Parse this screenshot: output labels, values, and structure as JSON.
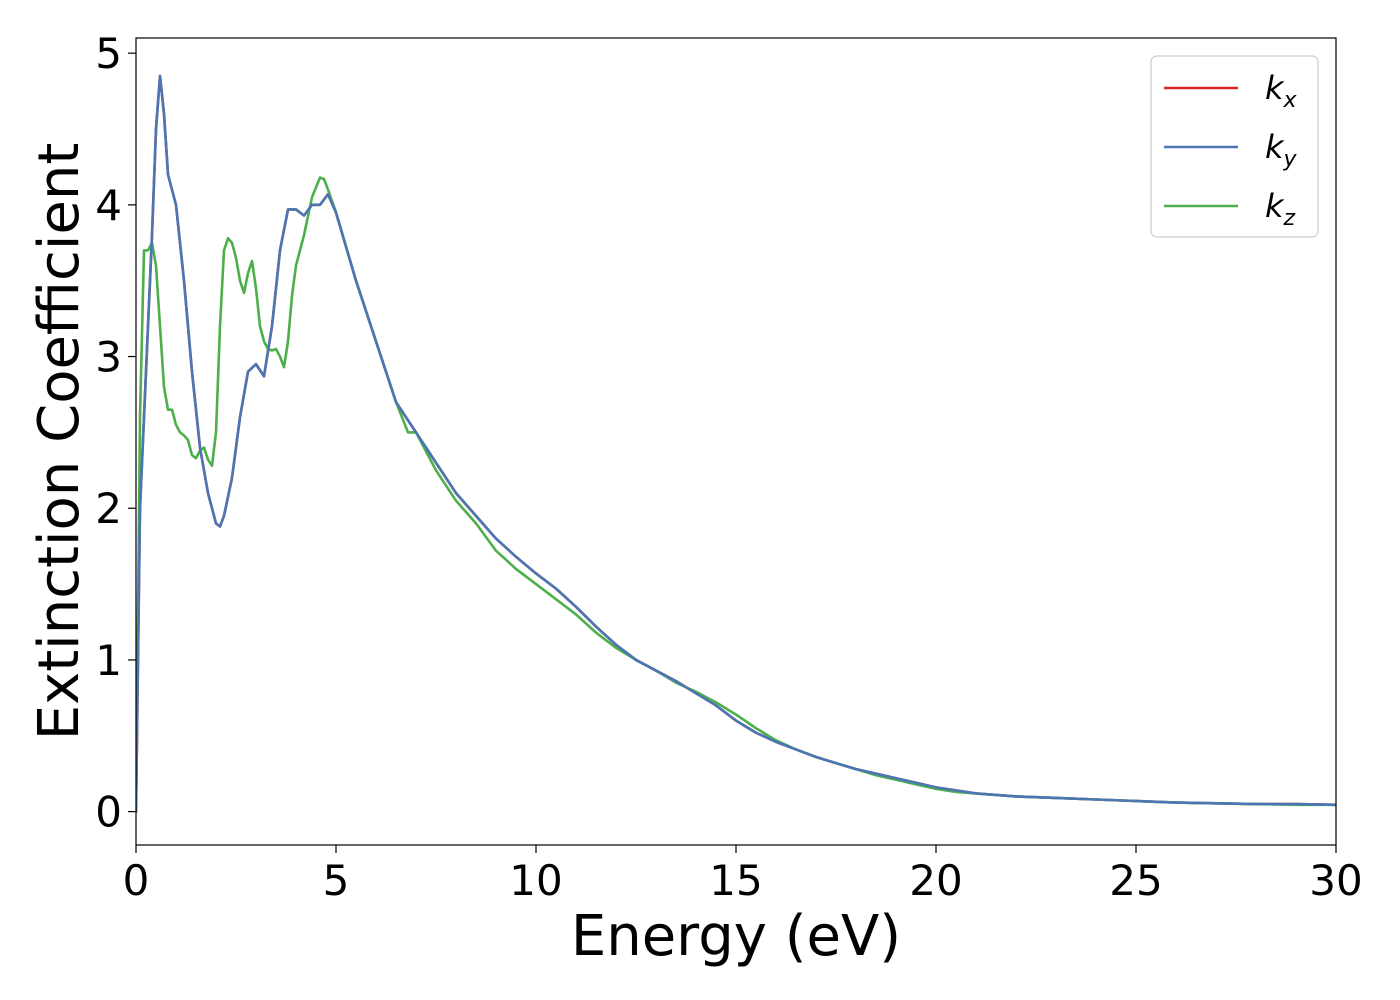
{
  "chart_data": {
    "type": "line",
    "title": "",
    "xlabel": "Energy (eV)",
    "ylabel": "Extinction Coefficient",
    "xlim": [
      0,
      30
    ],
    "ylim": [
      -0.22,
      5.1
    ],
    "xticks": [
      0,
      5,
      10,
      15,
      20,
      25,
      30
    ],
    "yticks": [
      0,
      1,
      2,
      3,
      4,
      5
    ],
    "grid": false,
    "legend_position": "top-right",
    "series": [
      {
        "name": "k",
        "subscript": "x",
        "color": "#d62728",
        "x": [
          0.0,
          0.1,
          0.2,
          0.3,
          0.4,
          0.5,
          0.6,
          0.7,
          0.8,
          0.9,
          1.0,
          1.2,
          1.4,
          1.6,
          1.8,
          2.0,
          2.1,
          2.2,
          2.4,
          2.6,
          2.8,
          3.0,
          3.2,
          3.4,
          3.6,
          3.8,
          4.0,
          4.2,
          4.4,
          4.6,
          4.8,
          5.0,
          5.5,
          6.0,
          6.5,
          7.0,
          7.5,
          8.0,
          8.5,
          9.0,
          9.5,
          10.0,
          10.5,
          11.0,
          11.5,
          12.0,
          12.5,
          13.0,
          13.5,
          14.0,
          14.5,
          15.0,
          15.5,
          16.0,
          16.5,
          17.0,
          17.5,
          18.0,
          18.5,
          19.0,
          19.5,
          20.0,
          20.5,
          21.0,
          22.0,
          23.0,
          24.0,
          25.0,
          26.0,
          27.0,
          28.0,
          29.0,
          30.0
        ],
        "y": [
          0.0,
          2.0,
          2.6,
          3.2,
          3.8,
          4.5,
          4.85,
          4.6,
          4.2,
          4.1,
          4.0,
          3.5,
          2.9,
          2.4,
          2.1,
          1.9,
          1.88,
          1.95,
          2.2,
          2.6,
          2.9,
          2.95,
          2.87,
          3.2,
          3.7,
          3.97,
          3.97,
          3.93,
          4.0,
          4.0,
          4.07,
          3.95,
          3.5,
          3.1,
          2.7,
          2.5,
          2.3,
          2.1,
          1.95,
          1.8,
          1.68,
          1.57,
          1.47,
          1.35,
          1.22,
          1.1,
          1.0,
          0.93,
          0.86,
          0.78,
          0.7,
          0.6,
          0.52,
          0.46,
          0.41,
          0.36,
          0.32,
          0.28,
          0.25,
          0.22,
          0.19,
          0.16,
          0.14,
          0.12,
          0.1,
          0.09,
          0.08,
          0.07,
          0.06,
          0.055,
          0.05,
          0.05,
          0.045
        ]
      },
      {
        "name": "k",
        "subscript": "y",
        "color": "#4a77b4",
        "x": [
          0.0,
          0.1,
          0.2,
          0.3,
          0.4,
          0.5,
          0.6,
          0.7,
          0.8,
          0.9,
          1.0,
          1.2,
          1.4,
          1.6,
          1.8,
          2.0,
          2.1,
          2.2,
          2.4,
          2.6,
          2.8,
          3.0,
          3.2,
          3.4,
          3.6,
          3.8,
          4.0,
          4.2,
          4.4,
          4.6,
          4.8,
          5.0,
          5.5,
          6.0,
          6.5,
          7.0,
          7.5,
          8.0,
          8.5,
          9.0,
          9.5,
          10.0,
          10.5,
          11.0,
          11.5,
          12.0,
          12.5,
          13.0,
          13.5,
          14.0,
          14.5,
          15.0,
          15.5,
          16.0,
          16.5,
          17.0,
          17.5,
          18.0,
          18.5,
          19.0,
          19.5,
          20.0,
          20.5,
          21.0,
          22.0,
          23.0,
          24.0,
          25.0,
          26.0,
          27.0,
          28.0,
          29.0,
          30.0
        ],
        "y": [
          0.0,
          2.0,
          2.6,
          3.2,
          3.8,
          4.5,
          4.85,
          4.6,
          4.2,
          4.1,
          4.0,
          3.5,
          2.9,
          2.4,
          2.1,
          1.9,
          1.88,
          1.95,
          2.2,
          2.6,
          2.9,
          2.95,
          2.87,
          3.2,
          3.7,
          3.97,
          3.97,
          3.93,
          4.0,
          4.0,
          4.07,
          3.95,
          3.5,
          3.1,
          2.7,
          2.5,
          2.3,
          2.1,
          1.95,
          1.8,
          1.68,
          1.57,
          1.47,
          1.35,
          1.22,
          1.1,
          1.0,
          0.93,
          0.86,
          0.78,
          0.7,
          0.6,
          0.52,
          0.46,
          0.41,
          0.36,
          0.32,
          0.28,
          0.25,
          0.22,
          0.19,
          0.16,
          0.14,
          0.12,
          0.1,
          0.09,
          0.08,
          0.07,
          0.06,
          0.055,
          0.05,
          0.05,
          0.045
        ]
      },
      {
        "name": "k",
        "subscript": "z",
        "color": "#4daf4a",
        "x": [
          0.0,
          0.1,
          0.2,
          0.3,
          0.4,
          0.5,
          0.6,
          0.7,
          0.8,
          0.9,
          1.0,
          1.1,
          1.2,
          1.3,
          1.4,
          1.5,
          1.6,
          1.7,
          1.8,
          1.9,
          2.0,
          2.1,
          2.2,
          2.3,
          2.4,
          2.5,
          2.6,
          2.7,
          2.8,
          2.9,
          3.0,
          3.1,
          3.2,
          3.3,
          3.4,
          3.5,
          3.6,
          3.7,
          3.8,
          3.9,
          4.0,
          4.2,
          4.4,
          4.6,
          4.7,
          4.8,
          5.0,
          5.5,
          6.0,
          6.5,
          6.8,
          7.0,
          7.5,
          8.0,
          8.5,
          9.0,
          9.5,
          10.0,
          10.5,
          11.0,
          11.5,
          12.0,
          12.5,
          13.0,
          13.5,
          14.0,
          14.5,
          15.0,
          15.5,
          16.0,
          16.5,
          17.0,
          17.5,
          18.0,
          18.5,
          19.0,
          19.5,
          20.0,
          20.5,
          21.0,
          22.0,
          23.0,
          24.0,
          25.0,
          26.0,
          27.0,
          28.0,
          29.0,
          30.0
        ],
        "y": [
          0.0,
          2.6,
          3.7,
          3.7,
          3.75,
          3.6,
          3.2,
          2.8,
          2.65,
          2.65,
          2.55,
          2.5,
          2.48,
          2.45,
          2.35,
          2.33,
          2.38,
          2.4,
          2.32,
          2.28,
          2.5,
          3.2,
          3.7,
          3.78,
          3.75,
          3.65,
          3.5,
          3.42,
          3.55,
          3.63,
          3.45,
          3.2,
          3.1,
          3.05,
          3.04,
          3.05,
          3.0,
          2.93,
          3.1,
          3.4,
          3.6,
          3.8,
          4.05,
          4.18,
          4.17,
          4.1,
          3.95,
          3.5,
          3.1,
          2.7,
          2.5,
          2.5,
          2.25,
          2.05,
          1.9,
          1.72,
          1.6,
          1.5,
          1.4,
          1.3,
          1.18,
          1.08,
          1.0,
          0.93,
          0.85,
          0.79,
          0.72,
          0.64,
          0.55,
          0.47,
          0.41,
          0.36,
          0.32,
          0.28,
          0.24,
          0.21,
          0.18,
          0.15,
          0.13,
          0.12,
          0.1,
          0.09,
          0.08,
          0.07,
          0.06,
          0.055,
          0.05,
          0.045,
          0.045
        ]
      }
    ]
  }
}
